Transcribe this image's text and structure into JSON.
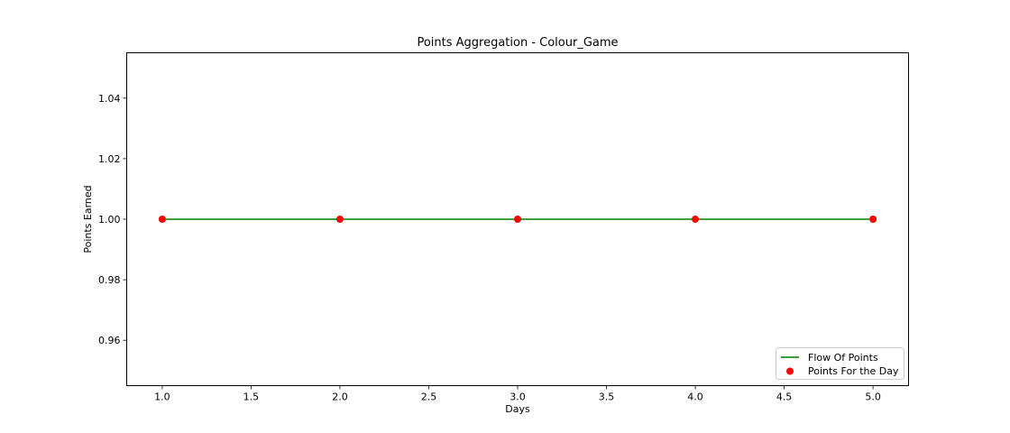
{
  "chart_data": {
    "type": "line",
    "title": "Points Aggregation - Colour_Game",
    "xlabel": "Days",
    "ylabel": "Points Earned",
    "xlim": [
      0.8,
      5.2
    ],
    "ylim": [
      0.945,
      1.055
    ],
    "xticks": [
      1.0,
      1.5,
      2.0,
      2.5,
      3.0,
      3.5,
      4.0,
      4.5,
      5.0
    ],
    "xtick_labels": [
      "1.0",
      "1.5",
      "2.0",
      "2.5",
      "3.0",
      "3.5",
      "4.0",
      "4.5",
      "5.0"
    ],
    "yticks": [
      0.96,
      0.98,
      1.0,
      1.02,
      1.04
    ],
    "ytick_labels": [
      "0.96",
      "0.98",
      "1.00",
      "1.02",
      "1.04"
    ],
    "grid": false,
    "legend_position": "lower-right",
    "series": [
      {
        "name": "Flow Of Points",
        "kind": "line",
        "color": "#008000",
        "x": [
          1,
          2,
          3,
          4,
          5
        ],
        "y": [
          1,
          1,
          1,
          1,
          1
        ]
      },
      {
        "name": "Points For the Day",
        "kind": "marker",
        "color": "#ff0000",
        "x": [
          1,
          2,
          3,
          4,
          5
        ],
        "y": [
          1,
          1,
          1,
          1,
          1
        ]
      }
    ]
  }
}
